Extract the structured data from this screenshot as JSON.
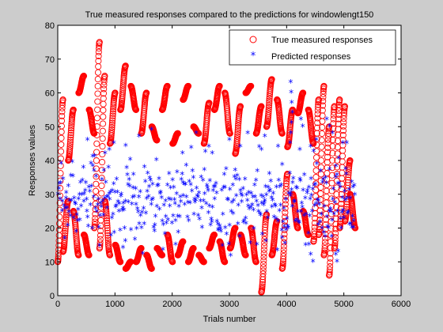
{
  "chart_data": {
    "type": "scatter",
    "title": "True measured responses compared to the predictions for windowlengt150",
    "xlabel": "Trials number",
    "ylabel": "Responses values",
    "xlim": [
      0,
      6000
    ],
    "ylim": [
      0,
      80
    ],
    "xticks": [
      0,
      1000,
      2000,
      3000,
      4000,
      5000,
      6000
    ],
    "yticks": [
      0,
      10,
      20,
      30,
      40,
      50,
      60,
      70,
      80
    ],
    "xtick_labels": [
      "0",
      "1000",
      "2000",
      "3000",
      "4000",
      "5000",
      "6000"
    ],
    "ytick_labels": [
      "0",
      "10",
      "20",
      "30",
      "40",
      "50",
      "60",
      "70",
      "80"
    ],
    "legend_position": "top-right",
    "grid": false,
    "series": [
      {
        "name": "True measured responses",
        "marker": "circle-open",
        "color": "#ff0000",
        "x_range": [
          0,
          5200
        ],
        "swings": [
          [
            10,
            58
          ],
          [
            13,
            28
          ],
          [
            40,
            55
          ],
          [
            25,
            12
          ],
          [
            60,
            65
          ],
          [
            18,
            12
          ],
          [
            55,
            48
          ],
          [
            20,
            75
          ],
          [
            14,
            65
          ],
          [
            28,
            12
          ],
          [
            45,
            60
          ],
          [
            15,
            10
          ],
          [
            55,
            68
          ],
          [
            8,
            10
          ],
          [
            62,
            55
          ],
          [
            10,
            14
          ],
          [
            48,
            60
          ],
          [
            12,
            8
          ],
          [
            50,
            46
          ],
          [
            14,
            12
          ],
          [
            55,
            62
          ],
          [
            18,
            10
          ],
          [
            45,
            48
          ],
          [
            12,
            16
          ],
          [
            58,
            62
          ],
          [
            10,
            14
          ],
          [
            50,
            48
          ],
          [
            12,
            10
          ],
          [
            45,
            57
          ],
          [
            14,
            18
          ],
          [
            55,
            62
          ],
          [
            16,
            10
          ],
          [
            60,
            48
          ],
          [
            14,
            20
          ],
          [
            42,
            56
          ],
          [
            18,
            12
          ],
          [
            60,
            62
          ],
          [
            20,
            10
          ],
          [
            48,
            56
          ],
          [
            1,
            24
          ],
          [
            50,
            64
          ],
          [
            12,
            22
          ],
          [
            58,
            48
          ],
          [
            8,
            36
          ],
          [
            44,
            55
          ],
          [
            30,
            20
          ],
          [
            54,
            60
          ],
          [
            25,
            18
          ],
          [
            55,
            45
          ],
          [
            16,
            58
          ],
          [
            18,
            62
          ],
          [
            12,
            50
          ],
          [
            6,
            56
          ],
          [
            14,
            58
          ],
          [
            20,
            56
          ],
          [
            22,
            40
          ],
          [
            30,
            20
          ]
        ]
      },
      {
        "name": "Predicted responses",
        "marker": "star",
        "color": "#0000ff",
        "x_range": [
          0,
          5200
        ],
        "mean": 28,
        "outliers": [
          [
            4070,
            63
          ],
          [
            4080,
            60
          ],
          [
            4090,
            57
          ],
          [
            4100,
            54
          ],
          [
            4085,
            51
          ],
          [
            4075,
            48
          ],
          [
            4060,
            45
          ],
          [
            4250,
            52
          ],
          [
            4280,
            50
          ],
          [
            4230,
            43
          ],
          [
            4700,
            52
          ],
          [
            4750,
            50
          ],
          [
            4800,
            48
          ],
          [
            1420,
            47
          ],
          [
            1640,
            49
          ],
          [
            2420,
            48
          ],
          [
            3320,
            48
          ],
          [
            3620,
            47
          ],
          [
            520,
            46
          ],
          [
            3000,
            46
          ],
          [
            3850,
            44
          ],
          [
            4420,
            44
          ],
          [
            4980,
            45
          ],
          [
            5050,
            45
          ],
          [
            3190,
            44
          ],
          [
            610,
            41
          ],
          [
            2180,
            42
          ],
          [
            900,
            43
          ],
          [
            980,
            45
          ],
          [
            2640,
            44
          ],
          [
            2700,
            42
          ],
          [
            3560,
            43
          ],
          [
            4520,
            46
          ],
          [
            4390,
            15
          ],
          [
            4420,
            12
          ],
          [
            4460,
            10
          ],
          [
            4860,
            12
          ],
          [
            4880,
            10
          ],
          [
            4900,
            13
          ],
          [
            1140,
            14
          ],
          [
            1180,
            16
          ],
          [
            3640,
            16
          ],
          [
            3480,
            15
          ],
          [
            2060,
            15
          ],
          [
            3920,
            17
          ],
          [
            5140,
            20
          ],
          [
            5170,
            22
          ]
        ]
      }
    ]
  }
}
